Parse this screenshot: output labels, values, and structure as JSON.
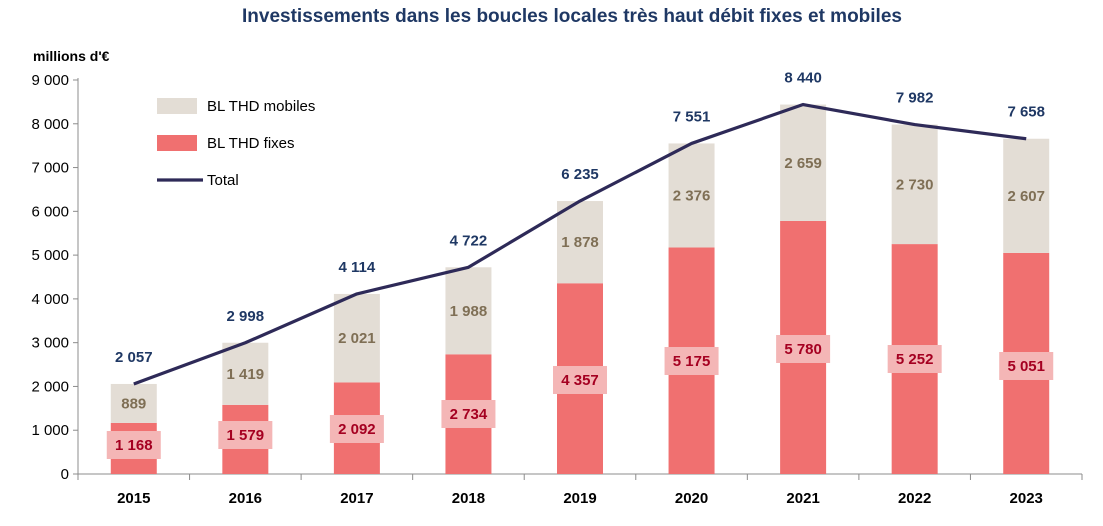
{
  "chart_data": {
    "type": "bar",
    "stacked": true,
    "title": "Investissements dans les boucles locales très haut débit fixes et mobiles",
    "ylabel": "millions d'€",
    "categories": [
      "2015",
      "2016",
      "2017",
      "2018",
      "2019",
      "2020",
      "2021",
      "2022",
      "2023"
    ],
    "ylim": [
      0,
      9000
    ],
    "yticks": [
      0,
      1000,
      2000,
      3000,
      4000,
      5000,
      6000,
      7000,
      8000,
      9000
    ],
    "ytick_labels": [
      "0",
      "1 000",
      "2 000",
      "3 000",
      "4 000",
      "5 000",
      "6 000",
      "7 000",
      "8 000",
      "9 000"
    ],
    "series": [
      {
        "name": "BL THD fixes",
        "kind": "bar",
        "color": "#f07070",
        "values": [
          1168,
          1579,
          2092,
          2734,
          4357,
          5175,
          5780,
          5252,
          5051
        ],
        "labels": [
          "1 168",
          "1 579",
          "2 092",
          "2 734",
          "4 357",
          "5 175",
          "5 780",
          "5 252",
          "5 051"
        ]
      },
      {
        "name": "BL THD mobiles",
        "kind": "bar",
        "color": "#e3ddd5",
        "values": [
          889,
          1419,
          2021,
          1988,
          1878,
          2376,
          2659,
          2730,
          2607
        ],
        "labels": [
          "889",
          "1 419",
          "2 021",
          "1 988",
          "1 878",
          "2 376",
          "2 659",
          "2 730",
          "2 607"
        ]
      },
      {
        "name": "Total",
        "kind": "line",
        "color": "#2e2a58",
        "values": [
          2057,
          2998,
          4114,
          4722,
          6235,
          7551,
          8440,
          7982,
          7658
        ],
        "labels": [
          "2 057",
          "2 998",
          "4 114",
          "4 722",
          "6 235",
          "7 551",
          "8 440",
          "7 982",
          "7 658"
        ]
      }
    ],
    "legend": {
      "placement": "top-left",
      "order": [
        "BL THD mobiles",
        "BL THD fixes",
        "Total"
      ]
    },
    "grid": false,
    "label_box_color": "#f4b6b6"
  }
}
